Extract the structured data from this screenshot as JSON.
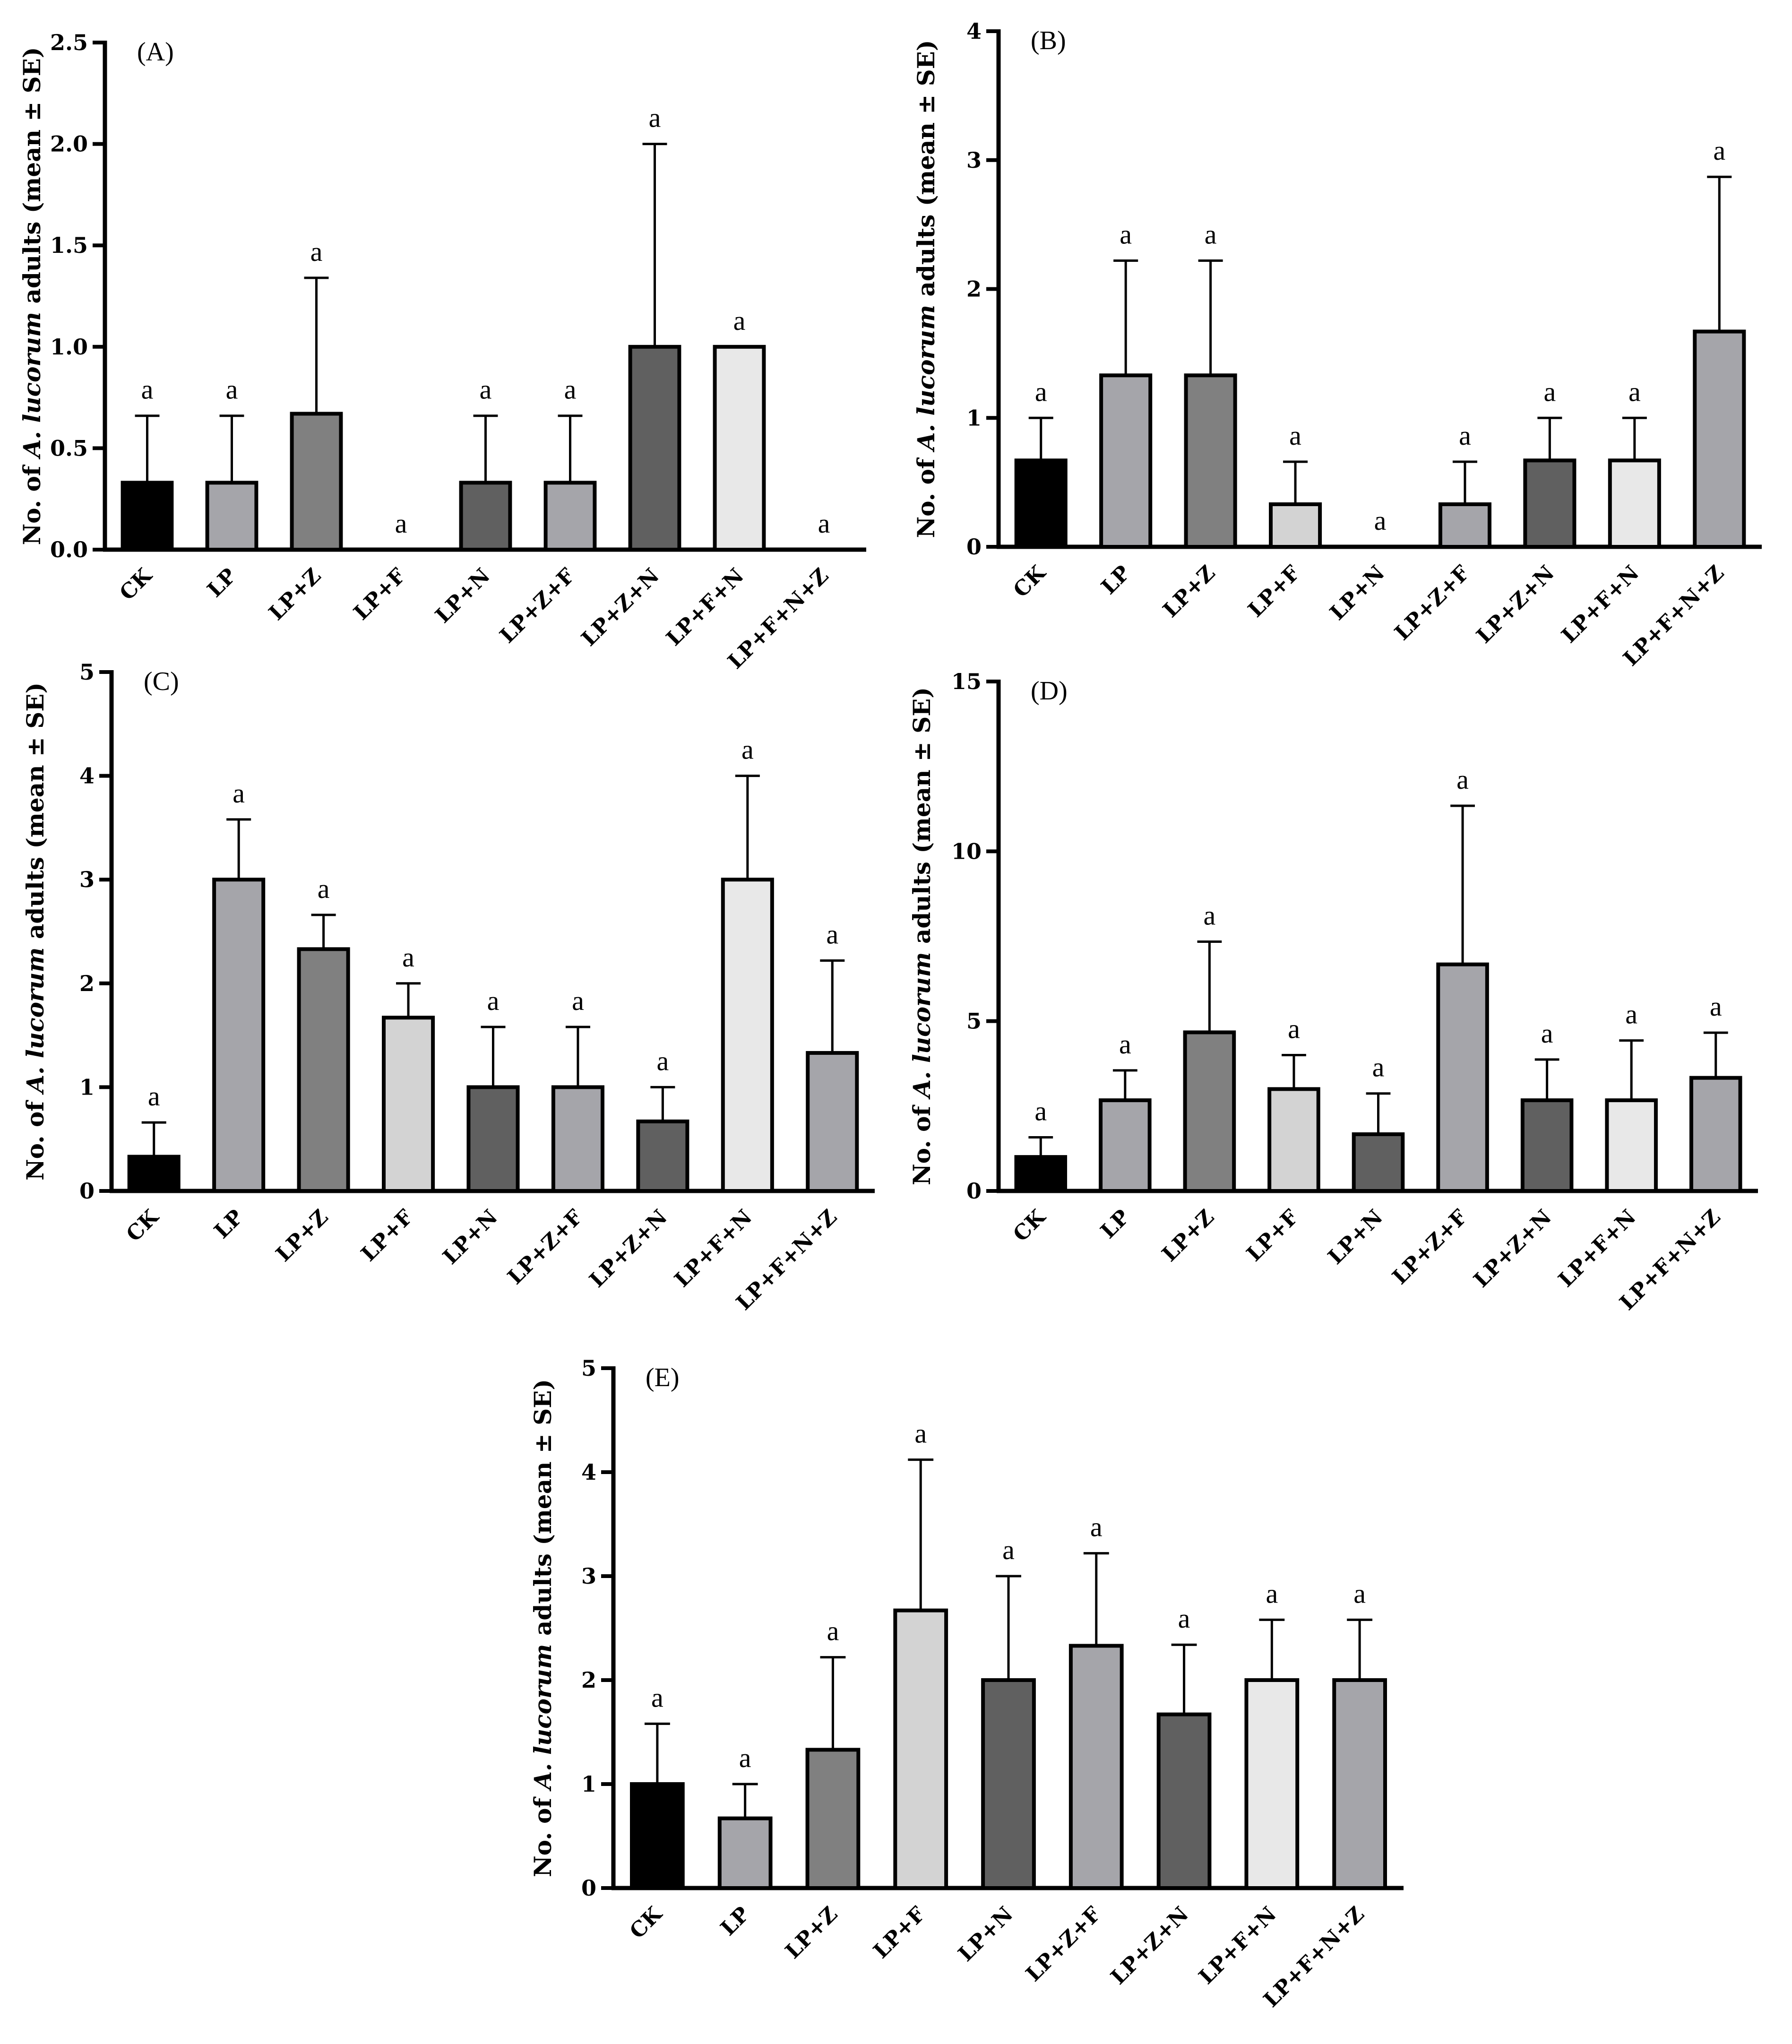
{
  "colors": {
    "CK": "#000000",
    "LP": "#a5a5aa",
    "LP+Z": "#808080",
    "LP+F": "#d3d3d3",
    "LP+N": "#606060",
    "LP+Z+F": "#a5a5aa",
    "LP+Z+N": "#606060",
    "LP+F+N": "#e8e8e8",
    "LP+F+N+Z": "#a5a5aa"
  },
  "y_label": {
    "prefix": "No. of ",
    "species": "A. lucorum",
    "suffix": " adults (mean ± SE)"
  },
  "chart_data": [
    {
      "type": "bar",
      "panel": "(A)",
      "ylabel": "No. of A. lucorum adults (mean ± SE)",
      "ylim": [
        0,
        2.5
      ],
      "yticks": [
        "0.0",
        "0.5",
        "1.0",
        "1.5",
        "2.0",
        "2.5"
      ],
      "categories": [
        "CK",
        "LP",
        "LP+Z",
        "LP+F",
        "LP+N",
        "LP+Z+F",
        "LP+Z+N",
        "LP+F+N",
        "LP+F+N+Z"
      ],
      "values": [
        0.33,
        0.33,
        0.67,
        0,
        0.33,
        0.33,
        1.0,
        1.0,
        0
      ],
      "errors": [
        0.33,
        0.33,
        0.67,
        0,
        0.33,
        0.33,
        1.0,
        0,
        0
      ],
      "letters": [
        "a",
        "a",
        "a",
        "a",
        "a",
        "a",
        "a",
        "a",
        "a"
      ]
    },
    {
      "type": "bar",
      "panel": "(B)",
      "ylabel": "No. of A. lucorum adults (mean ± SE)",
      "ylim": [
        0,
        4
      ],
      "yticks": [
        "0",
        "1",
        "2",
        "3",
        "4"
      ],
      "categories": [
        "CK",
        "LP",
        "LP+Z",
        "LP+F",
        "LP+N",
        "LP+Z+F",
        "LP+Z+N",
        "LP+F+N",
        "LP+F+N+Z"
      ],
      "values": [
        0.67,
        1.33,
        1.33,
        0.33,
        0,
        0.33,
        0.67,
        0.67,
        1.67
      ],
      "errors": [
        0.33,
        0.89,
        0.89,
        0.33,
        0,
        0.33,
        0.33,
        0.33,
        1.2
      ],
      "letters": [
        "a",
        "a",
        "a",
        "a",
        "a",
        "a",
        "a",
        "a",
        "a"
      ]
    },
    {
      "type": "bar",
      "panel": "(C)",
      "ylabel": "No. of A. lucorum adults (mean ± SE)",
      "ylim": [
        0,
        5
      ],
      "yticks": [
        "0",
        "1",
        "2",
        "3",
        "4",
        "5"
      ],
      "categories": [
        "CK",
        "LP",
        "LP+Z",
        "LP+F",
        "LP+N",
        "LP+Z+F",
        "LP+Z+N",
        "LP+F+N",
        "LP+F+N+Z"
      ],
      "values": [
        0.33,
        3.0,
        2.33,
        1.67,
        1.0,
        1.0,
        0.67,
        3.0,
        1.33
      ],
      "errors": [
        0.33,
        0.58,
        0.33,
        0.33,
        0.58,
        0.58,
        0.33,
        1.0,
        0.89
      ],
      "letters": [
        "a",
        "a",
        "a",
        "a",
        "a",
        "a",
        "a",
        "a",
        "a"
      ]
    },
    {
      "type": "bar",
      "panel": "(D)",
      "ylabel": "No. of A. lucorum adults (mean ± SE)",
      "ylim": [
        0,
        15
      ],
      "yticks": [
        "0",
        "5",
        "10",
        "15"
      ],
      "categories": [
        "CK",
        "LP",
        "LP+Z",
        "LP+F",
        "LP+N",
        "LP+Z+F",
        "LP+Z+N",
        "LP+F+N",
        "LP+F+N+Z"
      ],
      "values": [
        1.0,
        2.67,
        4.67,
        3.0,
        1.67,
        6.67,
        2.67,
        2.67,
        3.33
      ],
      "errors": [
        0.58,
        0.88,
        2.67,
        1.0,
        1.2,
        4.67,
        1.2,
        1.76,
        1.33
      ],
      "letters": [
        "a",
        "a",
        "a",
        "a",
        "a",
        "a",
        "a",
        "a",
        "a"
      ]
    },
    {
      "type": "bar",
      "panel": "(E)",
      "ylabel": "No. of A. lucorum adults (mean ± SE)",
      "ylim": [
        0,
        5
      ],
      "yticks": [
        "0",
        "1",
        "2",
        "3",
        "4",
        "5"
      ],
      "categories": [
        "CK",
        "LP",
        "LP+Z",
        "LP+F",
        "LP+N",
        "LP+Z+F",
        "LP+Z+N",
        "LP+F+N",
        "LP+F+N+Z"
      ],
      "values": [
        1.0,
        0.67,
        1.33,
        2.67,
        2.0,
        2.33,
        1.67,
        2.0,
        2.0
      ],
      "errors": [
        0.58,
        0.33,
        0.89,
        1.45,
        1.0,
        0.89,
        0.67,
        0.58,
        0.58
      ],
      "letters": [
        "a",
        "a",
        "a",
        "a",
        "a",
        "a",
        "a",
        "a",
        "a"
      ]
    }
  ]
}
